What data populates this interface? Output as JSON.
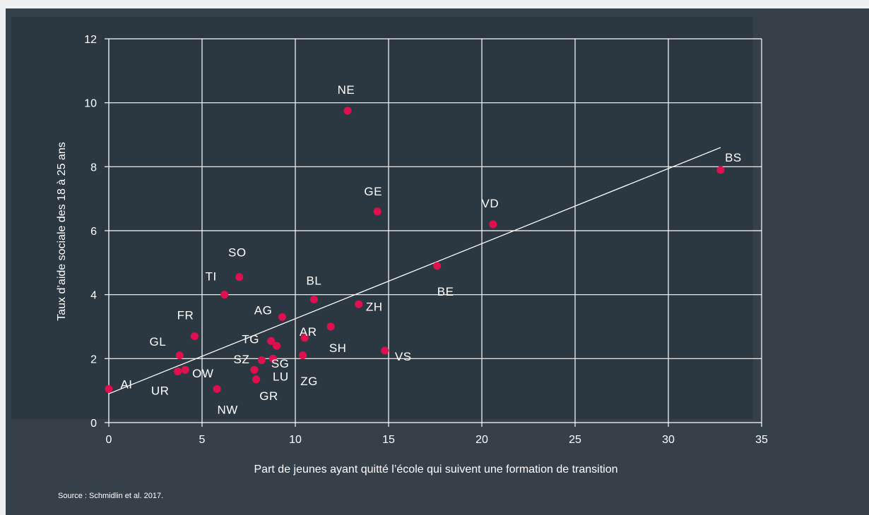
{
  "colors": {
    "point": "#e0104f",
    "grid": "#ffffff",
    "text": "#ffffff",
    "background": "#364049"
  },
  "source": "Source : Schmidlin et al. 2017.",
  "chart_data": {
    "type": "scatter",
    "xlabel": "Part de jeunes ayant quitté l’école qui suivent une formation de transition",
    "ylabel": "Taux d’aide sociale des 18 à 25 ans",
    "xlim": [
      0,
      35
    ],
    "ylim": [
      0,
      12
    ],
    "xticks": [
      0,
      5,
      10,
      15,
      20,
      25,
      30,
      35
    ],
    "yticks": [
      0,
      2,
      4,
      6,
      8,
      10,
      12
    ],
    "grid": true,
    "points": [
      {
        "label": "AI",
        "x": 0.0,
        "y": 1.05
      },
      {
        "label": "UR",
        "x": 3.7,
        "y": 1.6
      },
      {
        "label": "GL",
        "x": 3.8,
        "y": 2.1
      },
      {
        "label": "OW",
        "x": 4.1,
        "y": 1.65
      },
      {
        "label": "FR",
        "x": 4.6,
        "y": 2.7
      },
      {
        "label": "NW",
        "x": 5.8,
        "y": 1.05
      },
      {
        "label": "TI",
        "x": 6.2,
        "y": 4.0
      },
      {
        "label": "SO",
        "x": 7.0,
        "y": 4.55
      },
      {
        "label": "SZ",
        "x": 7.8,
        "y": 1.65
      },
      {
        "label": "GR",
        "x": 7.9,
        "y": 1.35
      },
      {
        "label": "",
        "x": 8.2,
        "y": 1.95
      },
      {
        "label": "TG",
        "x": 8.7,
        "y": 2.55
      },
      {
        "label": "LU",
        "x": 8.8,
        "y": 2.0
      },
      {
        "label": "SG",
        "x": 9.0,
        "y": 2.4
      },
      {
        "label": "AG",
        "x": 9.3,
        "y": 3.3
      },
      {
        "label": "ZG",
        "x": 10.4,
        "y": 2.1
      },
      {
        "label": "AR",
        "x": 10.5,
        "y": 2.65
      },
      {
        "label": "BL",
        "x": 11.0,
        "y": 3.85
      },
      {
        "label": "SH",
        "x": 11.9,
        "y": 3.0
      },
      {
        "label": "NE",
        "x": 12.8,
        "y": 9.75
      },
      {
        "label": "ZH",
        "x": 13.4,
        "y": 3.7
      },
      {
        "label": "GE",
        "x": 14.4,
        "y": 6.6
      },
      {
        "label": "VS",
        "x": 14.8,
        "y": 2.25
      },
      {
        "label": "BE",
        "x": 17.6,
        "y": 4.9
      },
      {
        "label": "VD",
        "x": 20.6,
        "y": 6.2
      },
      {
        "label": "BS",
        "x": 32.8,
        "y": 7.9
      }
    ],
    "trendline": {
      "x": [
        0,
        32.8
      ],
      "y": [
        0.9,
        8.6
      ]
    }
  }
}
